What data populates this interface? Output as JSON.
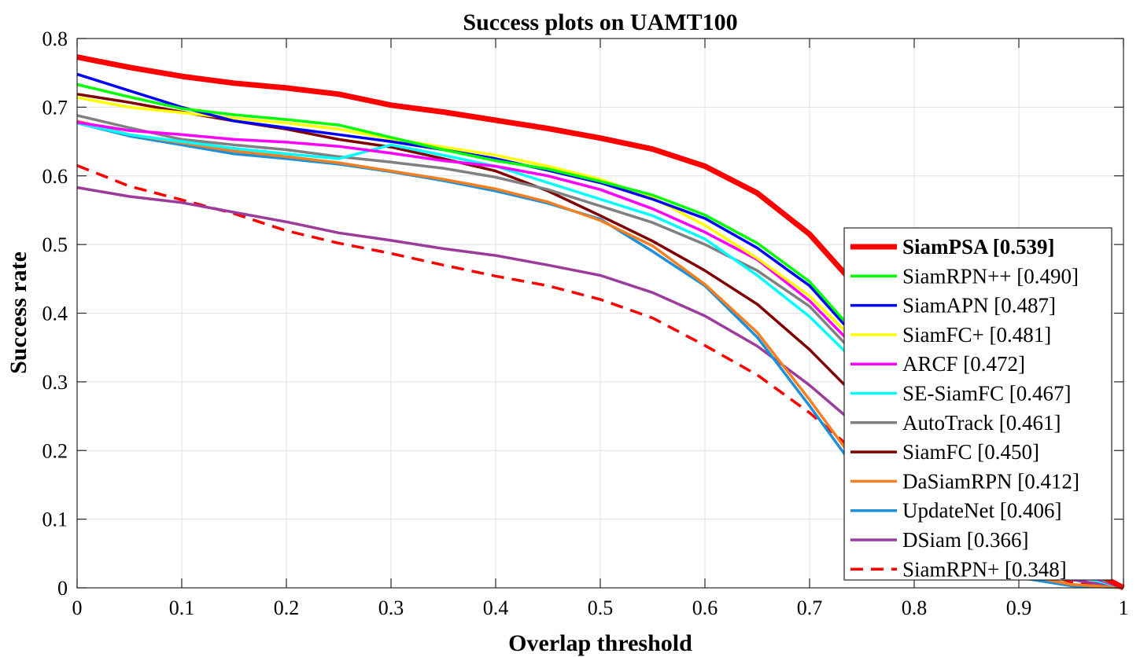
{
  "chart_data": {
    "type": "line",
    "title": "Success plots on UAMT100",
    "xlabel": "Overlap threshold",
    "ylabel": "Success rate",
    "xlim": [
      0,
      1
    ],
    "ylim": [
      0,
      0.8
    ],
    "xticks": [
      0,
      0.1,
      0.2,
      0.3,
      0.4,
      0.5,
      0.6,
      0.7,
      0.8,
      0.9,
      1
    ],
    "yticks": [
      0,
      0.1,
      0.2,
      0.3,
      0.4,
      0.5,
      0.6,
      0.7,
      0.8
    ],
    "xtick_labels": [
      "0",
      "0.1",
      "0.2",
      "0.3",
      "0.4",
      "0.5",
      "0.6",
      "0.7",
      "0.8",
      "0.9",
      "1"
    ],
    "ytick_labels": [
      "0",
      "0.1",
      "0.2",
      "0.3",
      "0.4",
      "0.5",
      "0.6",
      "0.7",
      "0.8"
    ],
    "grid": true,
    "legend_position": "lower-right",
    "x": [
      0,
      0.05,
      0.1,
      0.15,
      0.2,
      0.25,
      0.3,
      0.35,
      0.4,
      0.45,
      0.5,
      0.55,
      0.6,
      0.65,
      0.7,
      0.75,
      0.8,
      0.85,
      0.9,
      0.95,
      1
    ],
    "series": [
      {
        "name": "SiamPSA [0.539]",
        "color": "#ff0000",
        "style": "solid",
        "bold": true,
        "values": [
          0.773,
          0.758,
          0.745,
          0.735,
          0.728,
          0.719,
          0.703,
          0.693,
          0.681,
          0.669,
          0.655,
          0.639,
          0.614,
          0.575,
          0.515,
          0.43,
          0.33,
          0.22,
          0.12,
          0.04,
          0.0
        ]
      },
      {
        "name": "SiamRPN++ [0.490]",
        "color": "#00ff00",
        "style": "solid",
        "bold": false,
        "values": [
          0.733,
          0.715,
          0.698,
          0.689,
          0.682,
          0.674,
          0.656,
          0.638,
          0.622,
          0.61,
          0.592,
          0.572,
          0.543,
          0.502,
          0.446,
          0.36,
          0.27,
          0.18,
          0.1,
          0.03,
          0.0
        ]
      },
      {
        "name": "SiamAPN [0.487]",
        "color": "#0000ff",
        "style": "solid",
        "bold": false,
        "values": [
          0.748,
          0.724,
          0.7,
          0.68,
          0.67,
          0.66,
          0.65,
          0.638,
          0.625,
          0.608,
          0.59,
          0.566,
          0.538,
          0.495,
          0.44,
          0.355,
          0.265,
          0.175,
          0.095,
          0.03,
          0.0
        ]
      },
      {
        "name": "SiamFC+ [0.481]",
        "color": "#ffff00",
        "style": "solid",
        "bold": false,
        "values": [
          0.714,
          0.7,
          0.692,
          0.684,
          0.677,
          0.668,
          0.654,
          0.642,
          0.63,
          0.614,
          0.595,
          0.568,
          0.528,
          0.48,
          0.425,
          0.35,
          0.26,
          0.17,
          0.09,
          0.03,
          0.0
        ]
      },
      {
        "name": "ARCF [0.472]",
        "color": "#ff00ff",
        "style": "solid",
        "bold": false,
        "values": [
          0.678,
          0.666,
          0.66,
          0.653,
          0.649,
          0.643,
          0.633,
          0.622,
          0.614,
          0.6,
          0.58,
          0.552,
          0.518,
          0.478,
          0.418,
          0.34,
          0.25,
          0.165,
          0.085,
          0.025,
          0.0
        ]
      },
      {
        "name": "SE-SiamFC [0.467]",
        "color": "#00ffff",
        "style": "solid",
        "bold": false,
        "values": [
          0.677,
          0.66,
          0.65,
          0.64,
          0.632,
          0.625,
          0.645,
          0.63,
          0.614,
          0.59,
          0.566,
          0.542,
          0.508,
          0.455,
          0.395,
          0.32,
          0.235,
          0.155,
          0.08,
          0.02,
          0.0
        ]
      },
      {
        "name": "AutoTrack [0.461]",
        "color": "#808080",
        "style": "solid",
        "bold": false,
        "values": [
          0.688,
          0.67,
          0.653,
          0.645,
          0.638,
          0.628,
          0.62,
          0.611,
          0.598,
          0.58,
          0.556,
          0.532,
          0.5,
          0.462,
          0.41,
          0.33,
          0.245,
          0.16,
          0.082,
          0.022,
          0.0
        ]
      },
      {
        "name": "SiamFC [0.450]",
        "color": "#800000",
        "style": "solid",
        "bold": false,
        "values": [
          0.719,
          0.707,
          0.693,
          0.68,
          0.668,
          0.653,
          0.642,
          0.625,
          0.607,
          0.578,
          0.542,
          0.505,
          0.462,
          0.413,
          0.347,
          0.27,
          0.2,
          0.13,
          0.07,
          0.02,
          0.0
        ]
      },
      {
        "name": "DaSiamRPN [0.412]",
        "color": "#f58022",
        "style": "solid",
        "bold": false,
        "values": [
          0.68,
          0.66,
          0.648,
          0.636,
          0.628,
          0.619,
          0.607,
          0.595,
          0.581,
          0.562,
          0.535,
          0.498,
          0.442,
          0.372,
          0.274,
          0.17,
          0.1,
          0.05,
          0.02,
          0.005,
          0.0
        ]
      },
      {
        "name": "UpdateNet [0.406]",
        "color": "#1e90d8",
        "style": "solid",
        "bold": false,
        "values": [
          0.677,
          0.658,
          0.645,
          0.632,
          0.625,
          0.617,
          0.606,
          0.593,
          0.578,
          0.56,
          0.537,
          0.49,
          0.44,
          0.365,
          0.265,
          0.16,
          0.09,
          0.04,
          0.015,
          0.003,
          0.0
        ]
      },
      {
        "name": "DSiam [0.366]",
        "color": "#9b3b9b",
        "style": "solid",
        "bold": false,
        "values": [
          0.583,
          0.57,
          0.561,
          0.547,
          0.533,
          0.517,
          0.506,
          0.494,
          0.484,
          0.47,
          0.455,
          0.43,
          0.396,
          0.352,
          0.295,
          0.23,
          0.16,
          0.095,
          0.045,
          0.012,
          0.0
        ]
      },
      {
        "name": "SiamRPN+ [0.348]",
        "color": "#ff0000",
        "style": "dashed",
        "bold": false,
        "values": [
          0.615,
          0.585,
          0.565,
          0.545,
          0.52,
          0.502,
          0.487,
          0.47,
          0.454,
          0.44,
          0.42,
          0.393,
          0.353,
          0.31,
          0.255,
          0.19,
          0.13,
          0.075,
          0.035,
          0.008,
          0.0
        ]
      }
    ]
  }
}
